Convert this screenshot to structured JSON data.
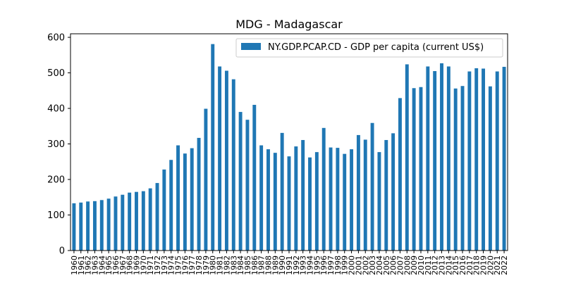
{
  "chart_data": {
    "type": "bar",
    "title": "MDG - Madagascar",
    "xlabel": "",
    "ylabel": "",
    "ylim": [
      0,
      610
    ],
    "yticks": [
      0,
      100,
      200,
      300,
      400,
      500,
      600
    ],
    "grid": false,
    "legend_position": "top-right",
    "categories": [
      "1960",
      "1961",
      "1962",
      "1963",
      "1964",
      "1965",
      "1966",
      "1967",
      "1968",
      "1969",
      "1970",
      "1971",
      "1972",
      "1973",
      "1974",
      "1975",
      "1976",
      "1977",
      "1978",
      "1979",
      "1980",
      "1981",
      "1982",
      "1983",
      "1984",
      "1985",
      "1986",
      "1987",
      "1988",
      "1989",
      "1990",
      "1991",
      "1992",
      "1993",
      "1994",
      "1995",
      "1996",
      "1997",
      "1998",
      "1999",
      "2000",
      "2001",
      "2002",
      "2003",
      "2004",
      "2005",
      "2006",
      "2007",
      "2008",
      "2009",
      "2010",
      "2011",
      "2012",
      "2013",
      "2014",
      "2015",
      "2016",
      "2017",
      "2018",
      "2019",
      "2020",
      "2021",
      "2022"
    ],
    "series": [
      {
        "name": "NY.GDP.PCAP.CD - GDP per capita (current US$)",
        "color": "#1f77b4",
        "values": [
          133,
          135,
          138,
          139,
          142,
          146,
          152,
          157,
          163,
          165,
          167,
          175,
          190,
          228,
          255,
          296,
          273,
          288,
          317,
          399,
          581,
          518,
          506,
          482,
          390,
          368,
          410,
          296,
          285,
          275,
          331,
          265,
          293,
          311,
          262,
          277,
          345,
          290,
          289,
          272,
          285,
          325,
          312,
          359,
          277,
          311,
          330,
          429,
          524,
          457,
          460,
          518,
          505,
          527,
          518,
          456,
          463,
          504,
          513,
          512,
          462,
          504,
          517
        ]
      }
    ]
  }
}
